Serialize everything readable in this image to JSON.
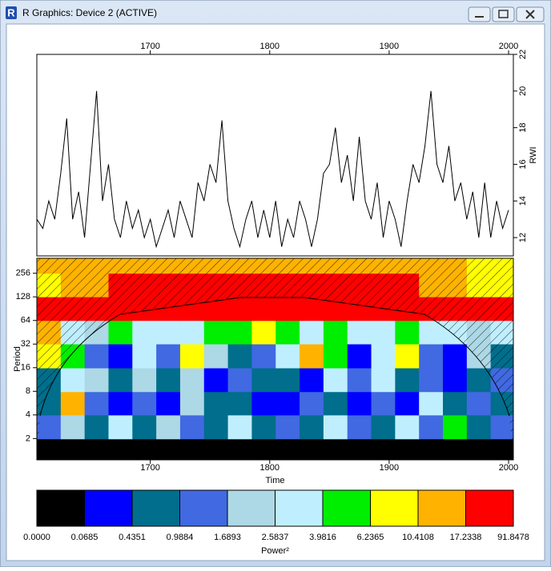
{
  "window": {
    "icon": "R",
    "title": "R Graphics: Device 2 (ACTIVE)"
  },
  "chart_data": [
    {
      "type": "line",
      "ylabel": "RWI",
      "color": "#000000",
      "x": [
        1605,
        1610,
        1615,
        1620,
        1625,
        1630,
        1635,
        1640,
        1645,
        1650,
        1655,
        1660,
        1665,
        1670,
        1675,
        1680,
        1685,
        1690,
        1695,
        1700,
        1705,
        1710,
        1715,
        1720,
        1725,
        1730,
        1735,
        1740,
        1745,
        1750,
        1755,
        1760,
        1765,
        1770,
        1775,
        1780,
        1785,
        1790,
        1795,
        1800,
        1805,
        1810,
        1815,
        1820,
        1825,
        1830,
        1835,
        1840,
        1845,
        1850,
        1855,
        1860,
        1865,
        1870,
        1875,
        1880,
        1885,
        1890,
        1895,
        1900,
        1905,
        1910,
        1915,
        1920,
        1925,
        1930,
        1935,
        1940,
        1945,
        1950,
        1955,
        1960,
        1965,
        1970,
        1975,
        1980,
        1985,
        1990,
        1995,
        2000
      ],
      "values": [
        13,
        12.5,
        14,
        13,
        15.5,
        18.5,
        13,
        14.5,
        12,
        16,
        20,
        14,
        16,
        13,
        12,
        14,
        12.5,
        13.5,
        12,
        13,
        11.5,
        12.5,
        13.5,
        12,
        14,
        13,
        12,
        15,
        14,
        16,
        15,
        18.4,
        14,
        12.5,
        11.5,
        13,
        14,
        12,
        13.5,
        12,
        14,
        11.5,
        13,
        12,
        14,
        13,
        11.5,
        13,
        15.5,
        16,
        18,
        15,
        16.5,
        14,
        17.5,
        14,
        13,
        15,
        12,
        14,
        13,
        11.5,
        14,
        16,
        15,
        17,
        20,
        16,
        15,
        17,
        14,
        15,
        13,
        14.5,
        12,
        15,
        12,
        14,
        12.5,
        13.5
      ],
      "xlim": [
        1605,
        2004
      ],
      "ylim": [
        11,
        22
      ],
      "xticks": [
        1700,
        1800,
        1900,
        2000
      ],
      "yticks": [
        12,
        14,
        16,
        18,
        20,
        22
      ]
    },
    {
      "type": "heatmap",
      "xlabel": "Time",
      "ylabel": "Period",
      "log_y": true,
      "x": [
        1615,
        1635,
        1655,
        1675,
        1695,
        1715,
        1735,
        1755,
        1775,
        1795,
        1815,
        1835,
        1855,
        1875,
        1895,
        1915,
        1935,
        1955,
        1975,
        1995
      ],
      "y": [
        1.4,
        2.8,
        5.7,
        11,
        23,
        45,
        91,
        181,
        362
      ],
      "values": [
        [
          0.05,
          0.03,
          0.06,
          0.04,
          0.05,
          0.03,
          0.06,
          0.04,
          0.05,
          0.03,
          0.05,
          0.04,
          0.06,
          0.03,
          0.05,
          0.04,
          0.06,
          0.03,
          0.05,
          0.04
        ],
        [
          1.2,
          2.5,
          0.6,
          3,
          0.5,
          2,
          1,
          0.8,
          2.8,
          0.7,
          1.5,
          0.5,
          3.5,
          1,
          0.9,
          2.6,
          1.3,
          4,
          0.7,
          1.1
        ],
        [
          0.8,
          11,
          1.5,
          0.4,
          1.2,
          0.3,
          2,
          0.5,
          0.9,
          0.3,
          0.2,
          1,
          0.6,
          0.4,
          1.5,
          0.3,
          2.7,
          0.5,
          1.2,
          0.6
        ],
        [
          0.6,
          3,
          1.8,
          0.7,
          2.2,
          0.5,
          1.9,
          0.4,
          1.1,
          0.6,
          0.9,
          0.4,
          2.7,
          1,
          2.6,
          0.5,
          1.2,
          0.3,
          0.7,
          1.5
        ],
        [
          8,
          4,
          1,
          0.3,
          3,
          1,
          9,
          2.5,
          0.5,
          1,
          3,
          12,
          4,
          0.4,
          2.7,
          8,
          1,
          0.3,
          2,
          0.9
        ],
        [
          13,
          3,
          2,
          4,
          3,
          2.8,
          3.5,
          4.5,
          5,
          7,
          4,
          3.5,
          5,
          3,
          2.7,
          4,
          2.8,
          3,
          2,
          3
        ],
        [
          30,
          30,
          30,
          30,
          30,
          30,
          30,
          30,
          30,
          30,
          30,
          30,
          30,
          30,
          30,
          30,
          30,
          30,
          30,
          30
        ],
        [
          10,
          12,
          14,
          18,
          25,
          30,
          30,
          30,
          30,
          30,
          30,
          30,
          30,
          30,
          25,
          20,
          15,
          12,
          10,
          8
        ],
        [
          11,
          11,
          12,
          12,
          13,
          13,
          14,
          14,
          14,
          14,
          14,
          14,
          13,
          13,
          12,
          12,
          11,
          11,
          10,
          10
        ]
      ],
      "xlim": [
        1605,
        2004
      ],
      "ylim": [
        1.07,
        397
      ],
      "xticks": [
        1700,
        1800,
        1900,
        2000
      ],
      "yticks": [
        2,
        4,
        8,
        16,
        32,
        64,
        128,
        256
      ],
      "colorbar": {
        "label": "Power²",
        "levels": [
          {
            "value": 0,
            "label": "0.0000"
          },
          0.0685,
          0.4351,
          0.9884,
          1.6893,
          2.5837,
          3.9816,
          6.2365,
          10.4108,
          17.2338,
          91.8478
        ],
        "colors": [
          "#000000",
          "#0000ff",
          "#006e8c",
          "#4169e1",
          "#add8e6",
          "#bfefff",
          "#00ee00",
          "#ffff00",
          "#ffb300",
          "#ff0000"
        ]
      }
    }
  ]
}
